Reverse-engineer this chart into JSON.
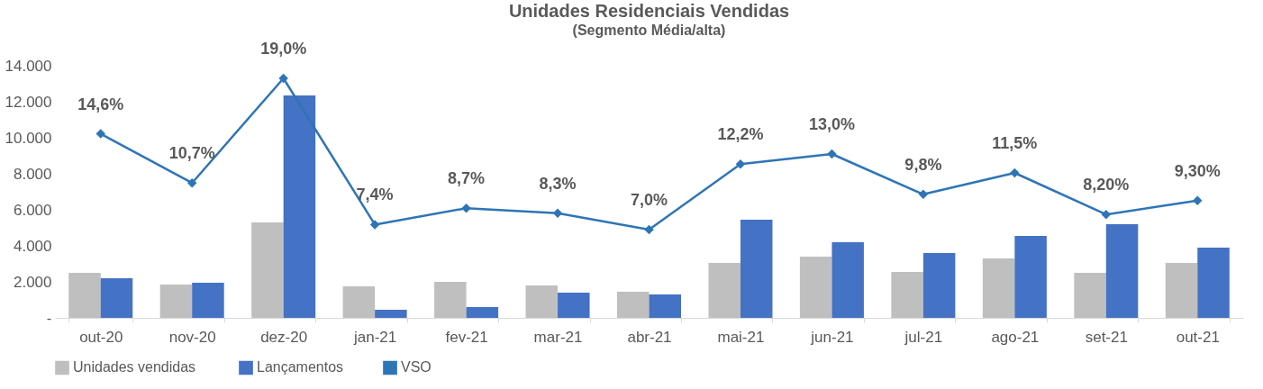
{
  "chart_data": {
    "type": "bar",
    "title": "Unidades Residenciais Vendidas",
    "subtitle": "(Segmento Média/alta)",
    "categories": [
      "out-20",
      "nov-20",
      "dez-20",
      "jan-21",
      "fev-21",
      "mar-21",
      "abr-21",
      "mai-21",
      "jun-21",
      "jul-21",
      "ago-21",
      "set-21",
      "out-21"
    ],
    "series": [
      {
        "name": "Unidades  vendidas",
        "color": "#bfbfbf",
        "values": [
          2500,
          1850,
          5300,
          1750,
          2000,
          1800,
          1450,
          3050,
          3400,
          2550,
          3300,
          2500,
          3050
        ]
      },
      {
        "name": "Lançamentos",
        "color": "#4472c4",
        "values": [
          2200,
          1950,
          12350,
          450,
          600,
          1400,
          1300,
          5450,
          4200,
          3600,
          4550,
          5200,
          3900
        ]
      },
      {
        "name": "VSO",
        "type": "line",
        "axis": "y2",
        "color": "#2e75b6",
        "marker": "diamond",
        "values": [
          14.6,
          10.7,
          19.0,
          7.4,
          8.7,
          8.3,
          7.0,
          12.2,
          13.0,
          9.8,
          11.5,
          8.2,
          9.3
        ],
        "value_labels": [
          "14,6%",
          "10,7%",
          "19,0%",
          "7,4%",
          "8,7%",
          "8,3%",
          "7,0%",
          "12,2%",
          "13,0%",
          "9,8%",
          "11,5%",
          "8,20%",
          "9,30%"
        ]
      }
    ],
    "ylim": [
      0,
      14000
    ],
    "yticks": [
      {
        "value": 0,
        "label": "-"
      },
      {
        "value": 2000,
        "label": "2.000"
      },
      {
        "value": 4000,
        "label": "4.000"
      },
      {
        "value": 6000,
        "label": "6.000"
      },
      {
        "value": 8000,
        "label": "8.000"
      },
      {
        "value": 10000,
        "label": "10.000"
      },
      {
        "value": 12000,
        "label": "12.000"
      },
      {
        "value": 14000,
        "label": "14.000"
      }
    ],
    "grid": false,
    "legend": "bottom"
  }
}
